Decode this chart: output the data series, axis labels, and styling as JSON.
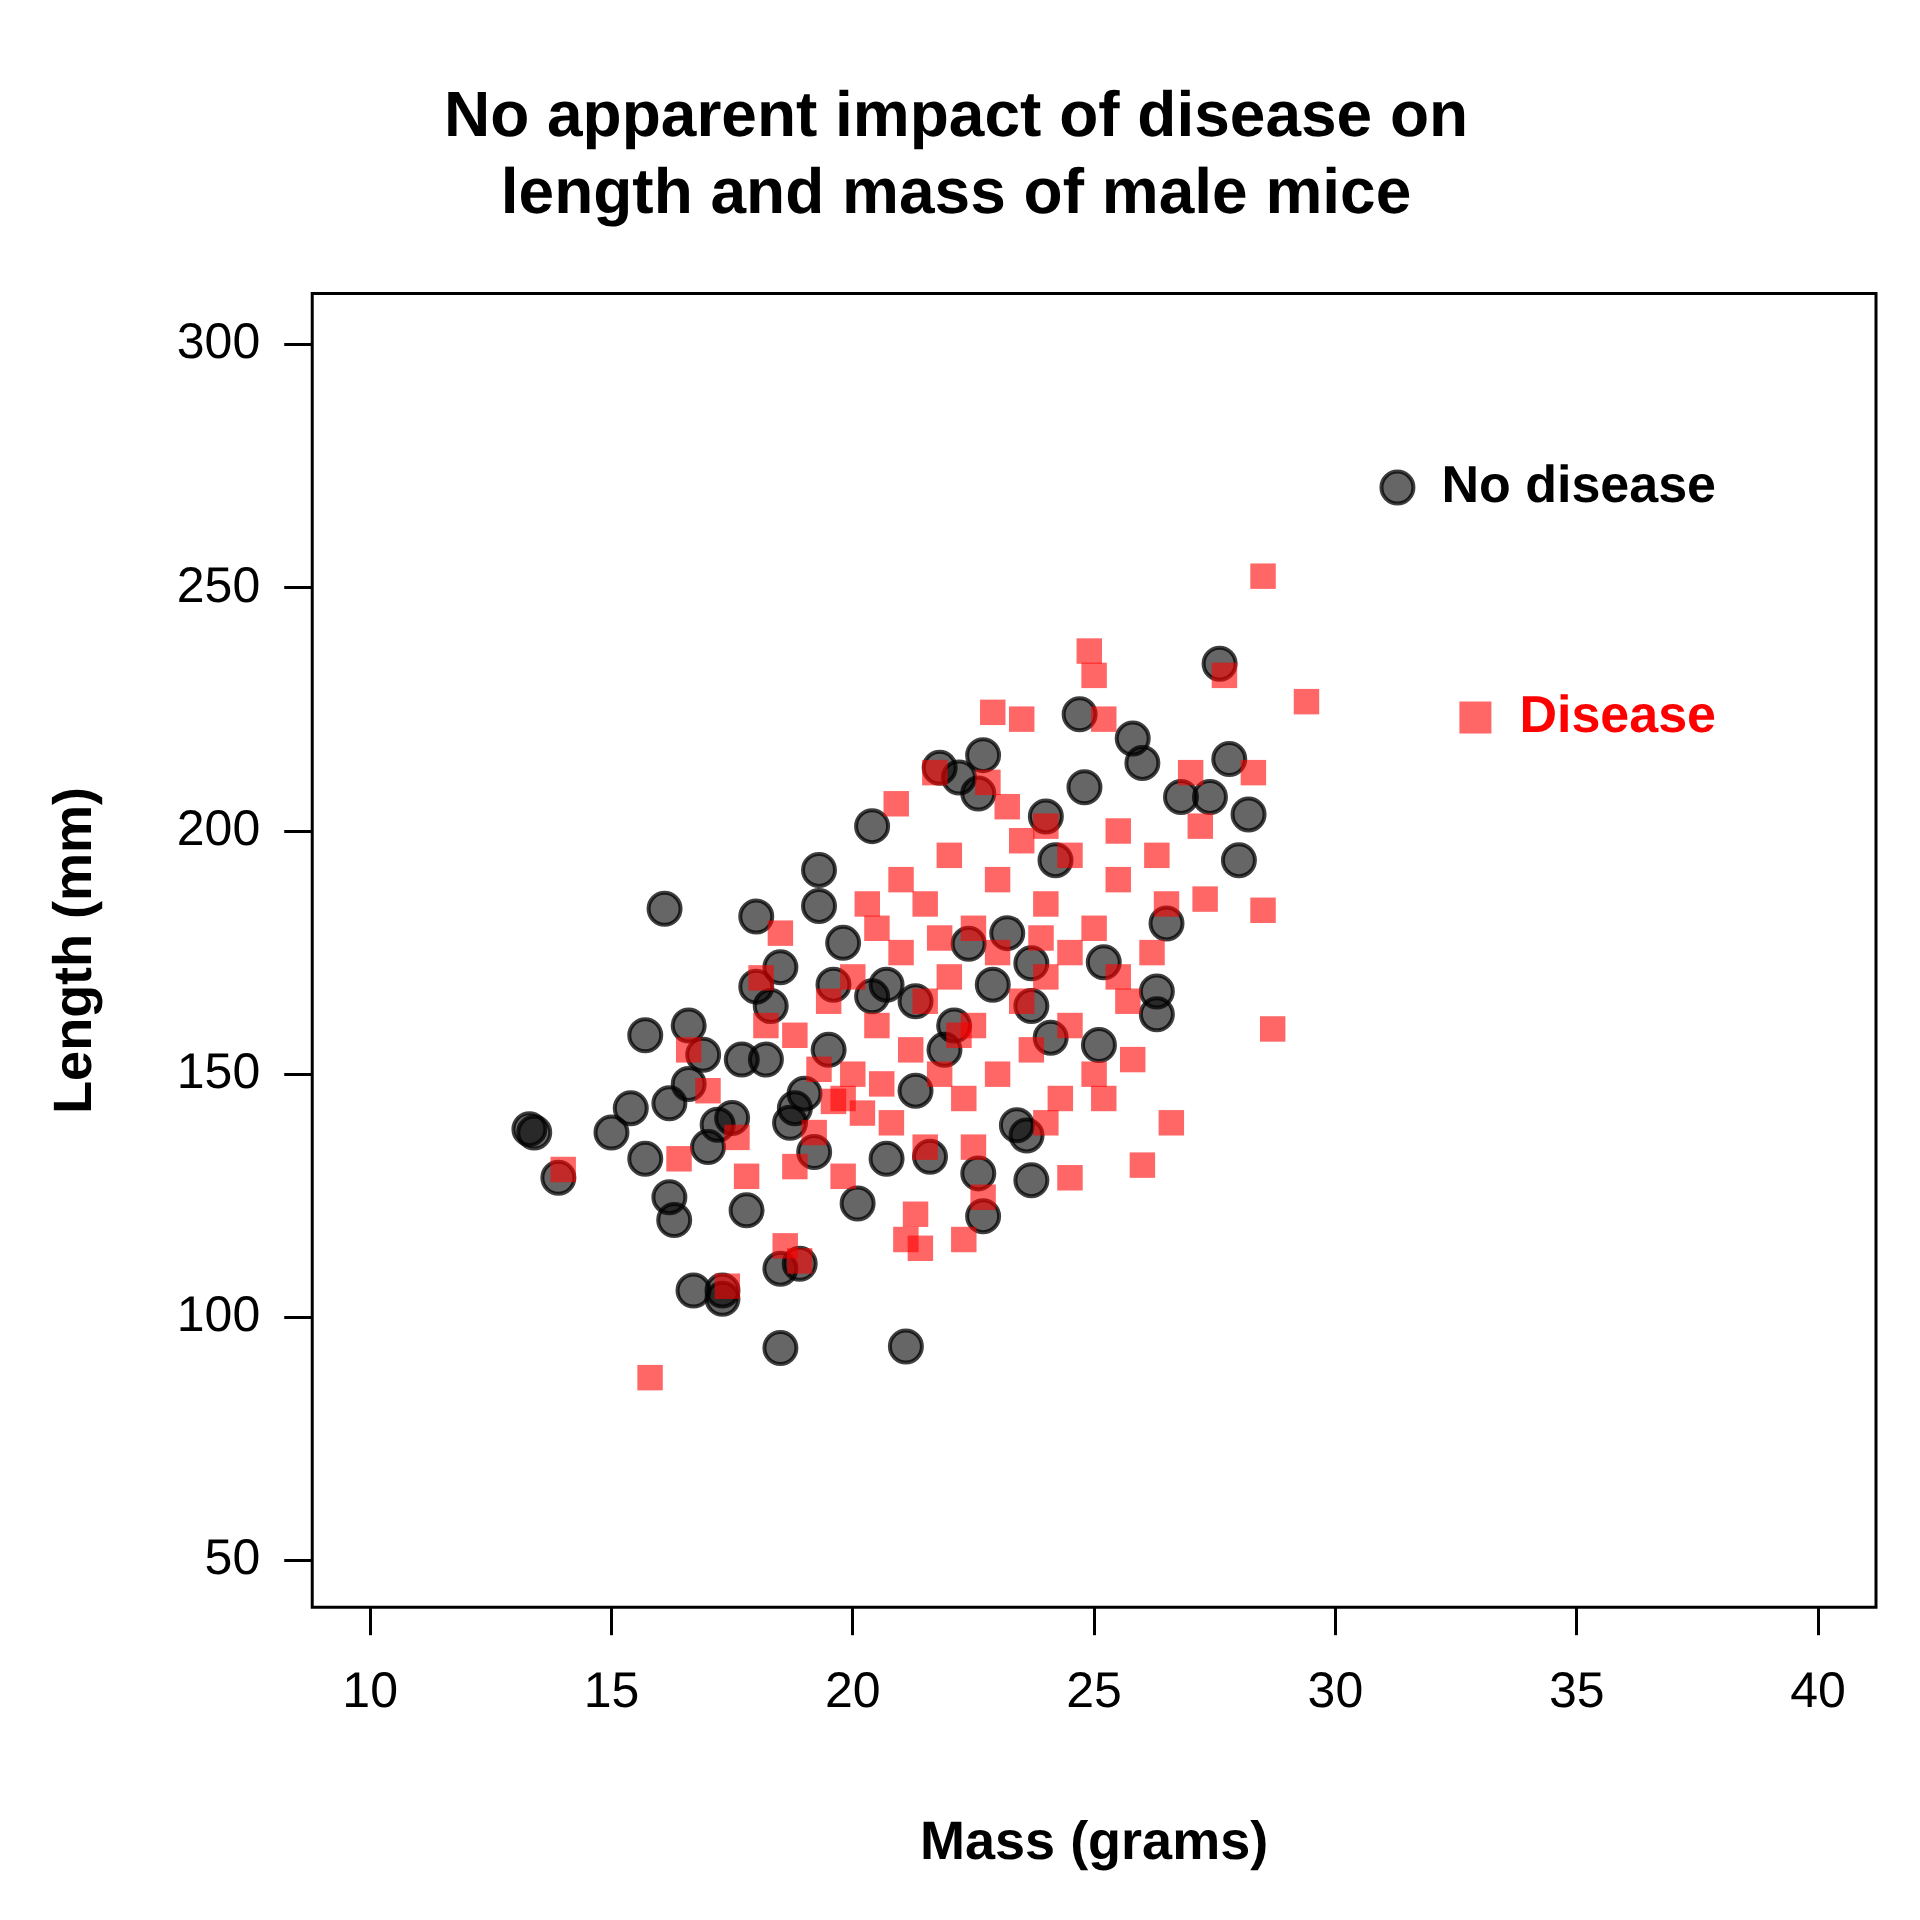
{
  "chart_data": {
    "type": "scatter",
    "title": "No apparent impact of disease on\nlength and mass of male mice",
    "xlabel": "Mass (grams)",
    "ylabel": "Length (mm)",
    "xlim": [
      8.8,
      41.2
    ],
    "xticks": [
      10,
      15,
      20,
      25,
      30,
      35,
      40
    ],
    "ylim": [
      40.4,
      310.5
    ],
    "yticks": [
      50,
      100,
      150,
      200,
      250,
      300
    ],
    "legend": "top right",
    "series": [
      {
        "name": "No disease",
        "color": "#000000",
        "marker": "circle",
        "x": [
          13.3,
          13.4,
          13.9,
          15.0,
          15.4,
          15.7,
          15.7,
          16.1,
          16.2,
          16.2,
          16.3,
          16.6,
          16.6,
          16.7,
          16.9,
          17.0,
          17.2,
          17.3,
          17.3,
          17.5,
          17.7,
          17.8,
          18.0,
          18.0,
          18.2,
          18.3,
          18.5,
          18.5,
          18.5,
          18.7,
          18.8,
          18.9,
          19.0,
          19.2,
          19.3,
          19.3,
          19.5,
          19.6,
          20.1,
          20.4,
          20.7,
          21.1,
          21.3,
          21.6,
          21.8,
          22.2,
          22.4,
          22.6,
          22.6,
          22.7,
          22.7,
          23.2,
          23.4,
          23.6,
          23.7,
          24.0,
          24.2,
          24.7,
          24.8,
          25.1,
          25.2,
          25.8,
          26.0,
          26.3,
          26.3,
          26.5,
          26.8,
          27.4,
          27.6,
          27.8,
          28.0,
          28.2,
          21.9,
          22.1,
          20.7,
          19.8,
          22.9,
          23.7,
          21.3,
          20.4,
          23.7,
          24.1
        ],
        "values": [
          138.7,
          138,
          128.7,
          138,
          143,
          158,
          132.6,
          184,
          144,
          124.7,
          120,
          148,
          160,
          105.5,
          154,
          135,
          139.6,
          105.5,
          103.8,
          141,
          153,
          122,
          168,
          182.4,
          153,
          164,
          172,
          110,
          93.7,
          140,
          143,
          111,
          146,
          134,
          192,
          184.6,
          155,
          168.4,
          123.4,
          201,
          132.6,
          94,
          165,
          133,
          213,
          211,
          176.8,
          207.7,
          129.6,
          215.6,
          120.8,
          179,
          139.5,
          137.4,
          128.2,
          203,
          194,
          224,
          209,
          156,
          173,
          219,
          214,
          167,
          162.3,
          181,
          207,
          207,
          234.4,
          214.8,
          194,
          203.4,
          155,
          160,
          168.4,
          177,
          168.4,
          172.8,
          146.6,
          166,
          164,
          157.5
        ]
      },
      {
        "name": "Disease",
        "color": "#ff0000",
        "marker": "square",
        "x": [
          14.0,
          15.8,
          16.4,
          16.6,
          17.0,
          17.4,
          17.6,
          17.8,
          18.1,
          18.5,
          18.6,
          18.8,
          18.9,
          19.3,
          19.6,
          19.8,
          20.2,
          20.6,
          20.9,
          21.1,
          21.3,
          21.4,
          21.7,
          22.3,
          22.7,
          22.9,
          23.5,
          24.0,
          24.5,
          24.9,
          25.0,
          25.2,
          25.5,
          25.8,
          26.0,
          26.3,
          26.6,
          27.0,
          27.2,
          27.3,
          27.7,
          28.3,
          28.5,
          28.5,
          28.7,
          29.4,
          21.0,
          21.5,
          22.0,
          22.5,
          23.0,
          23.5,
          24.0,
          24.5,
          20.0,
          20.5,
          21.0,
          21.5,
          22.0,
          22.5,
          23.0,
          23.5,
          24.0,
          24.5,
          25.0,
          25.5,
          20.5,
          21.2,
          21.8,
          22.3,
          23.0,
          23.7,
          24.3,
          25.0,
          25.7,
          26.2,
          19.5,
          20.0,
          20.8,
          21.5,
          22.5,
          24.0,
          25.2,
          26.5,
          23.2,
          24.5,
          25.5,
          22.8,
          21.8,
          20.3,
          19.8,
          18.8,
          19.2,
          18.2,
          22.2,
          23.9
        ],
        "values": [
          130.4,
          87.6,
          132.6,
          155,
          146.6,
          106.4,
          137,
          129,
          169.8,
          179,
          114.7,
          131,
          111.6,
          151,
          144.4,
          129,
          142,
          148,
          205.6,
          116,
          121.2,
          114.2,
          212,
          116,
          124.7,
          224.4,
          223,
          201,
          128.7,
          237,
          232,
          223,
          190,
          153,
          131.3,
          195,
          140,
          212,
          201,
          186,
          232,
          212,
          183.7,
          252.4,
          159.3,
          226.6,
          190,
          185,
          195,
          180,
          190,
          198,
          185,
          175,
          170,
          160,
          175,
          165,
          170,
          160,
          175,
          165,
          170,
          160,
          180,
          170,
          180,
          155,
          150,
          145,
          150,
          155,
          145,
          150,
          165,
          175,
          165,
          150,
          140,
          135,
          135,
          140,
          145,
          185,
          205,
          195,
          200,
          210,
          178,
          185,
          145,
          158,
          138,
          160,
          158,
          178
        ]
      }
    ]
  }
}
